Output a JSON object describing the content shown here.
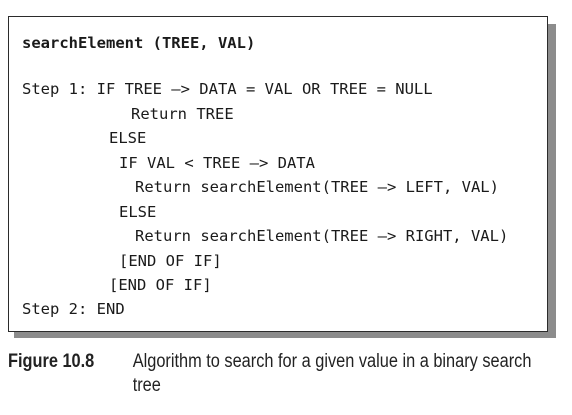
{
  "algorithm": {
    "title": "searchElement (TREE, VAL)",
    "lines": [
      "Step 1: IF TREE –> DATA = VAL OR TREE = NULL",
      "Return TREE",
      "ELSE",
      "IF VAL < TREE –> DATA",
      "Return searchElement(TREE –> LEFT, VAL)",
      "ELSE",
      "Return searchElement(TREE –> RIGHT, VAL)",
      "[END OF IF]",
      "[END OF IF]",
      "Step 2: END"
    ]
  },
  "caption": {
    "label": "Figure 10.8",
    "text": "Algorithm to search for a given value in a binary search tree"
  }
}
